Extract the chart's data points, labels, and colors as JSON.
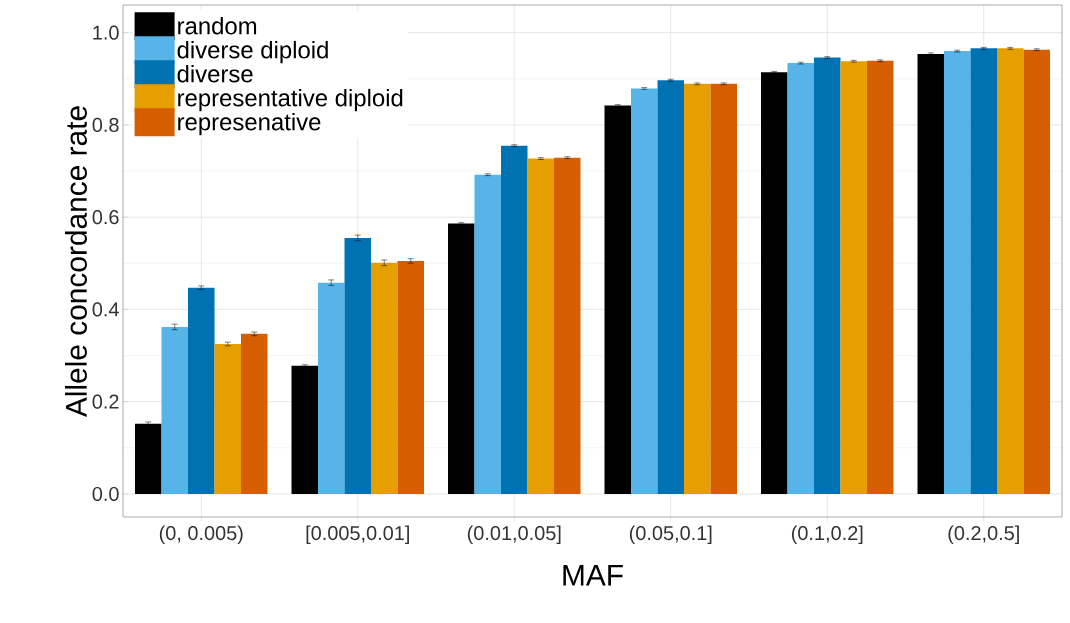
{
  "chart_data": {
    "type": "bar",
    "xlabel": "MAF",
    "ylabel": "Allele concordance rate",
    "categories": [
      "(0, 0.005)",
      "[0.005,0.01]",
      "(0.01,0.05]",
      "(0.05,0.1]",
      "(0.1,0.2]",
      "(0.2,0.5]"
    ],
    "series": [
      {
        "name": "random",
        "color": "#000000",
        "values": [
          0.152,
          0.278,
          0.586,
          0.842,
          0.914,
          0.954
        ],
        "errors": [
          0.004,
          0.002,
          0.002,
          0.002,
          0.002,
          0.002
        ]
      },
      {
        "name": "diverse diploid",
        "color": "#56b4e9",
        "values": [
          0.362,
          0.458,
          0.692,
          0.879,
          0.934,
          0.96
        ],
        "errors": [
          0.006,
          0.006,
          0.002,
          0.002,
          0.002,
          0.002
        ]
      },
      {
        "name": "diverse",
        "color": "#0072b2",
        "values": [
          0.447,
          0.555,
          0.755,
          0.897,
          0.946,
          0.966
        ],
        "errors": [
          0.004,
          0.006,
          0.002,
          0.002,
          0.002,
          0.002
        ]
      },
      {
        "name": "representative diploid",
        "color": "#e69f00",
        "values": [
          0.325,
          0.501,
          0.727,
          0.889,
          0.938,
          0.966
        ],
        "errors": [
          0.004,
          0.006,
          0.002,
          0.002,
          0.002,
          0.002
        ]
      },
      {
        "name": "represenative",
        "color": "#d55e00",
        "values": [
          0.347,
          0.505,
          0.729,
          0.889,
          0.939,
          0.963
        ],
        "errors": [
          0.004,
          0.005,
          0.002,
          0.002,
          0.002,
          0.002
        ]
      }
    ],
    "ylim": [
      -0.05,
      1.06
    ],
    "yticks": [
      {
        "value": 0,
        "label": "0.0"
      },
      {
        "value": 0.2,
        "label": "0.2"
      },
      {
        "value": 0.4,
        "label": "0.4"
      },
      {
        "value": 0.6,
        "label": "0.6"
      },
      {
        "value": 0.8,
        "label": "0.8"
      },
      {
        "value": 1.0,
        "label": "1.0"
      }
    ],
    "grid": true,
    "legend": "top left"
  }
}
